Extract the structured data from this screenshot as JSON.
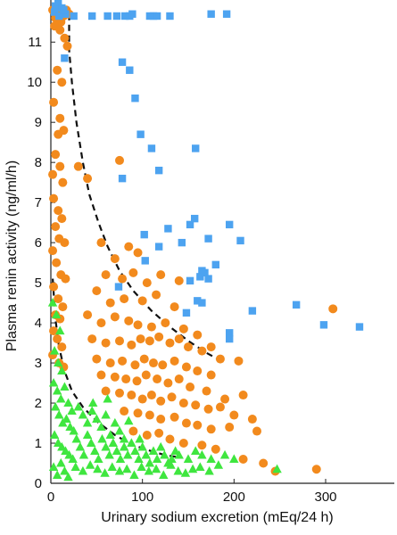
{
  "colors": {
    "high_renin": "#4da3f0",
    "normal_renin": "#f28a1d",
    "low_renin": "#3fe63f",
    "curve": "#111111",
    "axis": "#222222"
  },
  "chart_data": {
    "type": "scatter",
    "xlabel": "Urinary sodium excretion (mEq/24 h)",
    "ylabel": "Plasma renin activity (ng/ml/h)",
    "xlim": [
      0,
      375
    ],
    "ylim": [
      0,
      12.05
    ],
    "x_ticks": [
      0,
      100,
      200,
      300
    ],
    "y_ticks": [
      0,
      1,
      2,
      3,
      4,
      5,
      6,
      7,
      8,
      9,
      10,
      11
    ],
    "grid": false,
    "legend": "none",
    "series": [
      {
        "marker": "square",
        "color": "#4da3f0",
        "points": [
          [
            5,
            11.9
          ],
          [
            8,
            12
          ],
          [
            12,
            11.85
          ],
          [
            16,
            11.7
          ],
          [
            4,
            11.75
          ],
          [
            9,
            11.65
          ],
          [
            14,
            11.8
          ],
          [
            25,
            11.65
          ],
          [
            45,
            11.65
          ],
          [
            62,
            11.65
          ],
          [
            72,
            11.65
          ],
          [
            81,
            11.65
          ],
          [
            86,
            11.65
          ],
          [
            89,
            11.7
          ],
          [
            108,
            11.65
          ],
          [
            112,
            11.65
          ],
          [
            116,
            11.65
          ],
          [
            130,
            11.65
          ],
          [
            175,
            11.7
          ],
          [
            192,
            11.7
          ],
          [
            15,
            10.6
          ],
          [
            78,
            10.5
          ],
          [
            86,
            10.3
          ],
          [
            92,
            9.6
          ],
          [
            98,
            8.7
          ],
          [
            110,
            8.35
          ],
          [
            78,
            7.6
          ],
          [
            118,
            7.8
          ],
          [
            158,
            8.35
          ],
          [
            102,
            6.2
          ],
          [
            118,
            5.9
          ],
          [
            103,
            5.55
          ],
          [
            128,
            6.35
          ],
          [
            152,
            6.45
          ],
          [
            157,
            6.6
          ],
          [
            172,
            6.1
          ],
          [
            180,
            5.45
          ],
          [
            143,
            6.0
          ],
          [
            195,
            6.45
          ],
          [
            207,
            6.05
          ],
          [
            165,
            5.3
          ],
          [
            152,
            5.05
          ],
          [
            163,
            5.15
          ],
          [
            168,
            5.25
          ],
          [
            172,
            5.1
          ],
          [
            160,
            4.55
          ],
          [
            165,
            4.5
          ],
          [
            148,
            4.25
          ],
          [
            220,
            4.3
          ],
          [
            195,
            3.75
          ],
          [
            195,
            3.6
          ],
          [
            268,
            4.45
          ],
          [
            298,
            3.95
          ],
          [
            337,
            3.9
          ],
          [
            74,
            4.9
          ]
        ]
      },
      {
        "marker": "circle",
        "color": "#f28a1d",
        "points": [
          [
            2,
            11.8
          ],
          [
            5,
            11.6
          ],
          [
            8,
            11.75
          ],
          [
            11,
            11.5
          ],
          [
            14,
            11.65
          ],
          [
            17,
            11.8
          ],
          [
            20,
            11.7
          ],
          [
            4,
            11.4
          ],
          [
            10,
            11.3
          ],
          [
            15,
            11.1
          ],
          [
            18,
            10.9
          ],
          [
            7,
            10.3
          ],
          [
            12,
            10
          ],
          [
            3,
            9.5
          ],
          [
            10,
            9.1
          ],
          [
            14,
            8.8
          ],
          [
            8,
            8.7
          ],
          [
            5,
            8.2
          ],
          [
            10,
            7.9
          ],
          [
            13,
            7.5
          ],
          [
            2,
            7.7
          ],
          [
            30,
            7.9
          ],
          [
            75,
            8.05
          ],
          [
            40,
            7.6
          ],
          [
            3,
            7.1
          ],
          [
            8,
            6.8
          ],
          [
            12,
            6.6
          ],
          [
            5,
            6.4
          ],
          [
            9,
            6.1
          ],
          [
            15,
            6
          ],
          [
            2,
            5.8
          ],
          [
            6,
            5.5
          ],
          [
            11,
            5.2
          ],
          [
            16,
            5.1
          ],
          [
            3,
            4.9
          ],
          [
            8,
            4.6
          ],
          [
            13,
            4.4
          ],
          [
            5,
            4.2
          ],
          [
            10,
            4.1
          ],
          [
            3,
            3.8
          ],
          [
            7,
            3.6
          ],
          [
            12,
            3.4
          ],
          [
            2,
            3.2
          ],
          [
            9,
            3.0
          ],
          [
            14,
            2.9
          ],
          [
            55,
            6.0
          ],
          [
            70,
            5.6
          ],
          [
            85,
            5.9
          ],
          [
            95,
            5.75
          ],
          [
            60,
            5.2
          ],
          [
            78,
            5.1
          ],
          [
            90,
            5.25
          ],
          [
            105,
            5.0
          ],
          [
            120,
            5.2
          ],
          [
            140,
            5.05
          ],
          [
            50,
            4.8
          ],
          [
            65,
            4.5
          ],
          [
            80,
            4.6
          ],
          [
            100,
            4.55
          ],
          [
            115,
            4.7
          ],
          [
            135,
            4.4
          ],
          [
            40,
            4.2
          ],
          [
            55,
            4.0
          ],
          [
            70,
            4.15
          ],
          [
            85,
            4.05
          ],
          [
            95,
            3.95
          ],
          [
            110,
            3.9
          ],
          [
            125,
            4.0
          ],
          [
            145,
            3.85
          ],
          [
            160,
            3.7
          ],
          [
            175,
            3.4
          ],
          [
            45,
            3.6
          ],
          [
            60,
            3.5
          ],
          [
            75,
            3.55
          ],
          [
            88,
            3.45
          ],
          [
            98,
            3.6
          ],
          [
            108,
            3.55
          ],
          [
            118,
            3.65
          ],
          [
            130,
            3.5
          ],
          [
            140,
            3.6
          ],
          [
            150,
            3.4
          ],
          [
            165,
            3.3
          ],
          [
            185,
            3.1
          ],
          [
            205,
            3.05
          ],
          [
            50,
            3.1
          ],
          [
            65,
            3.0
          ],
          [
            78,
            3.05
          ],
          [
            92,
            2.95
          ],
          [
            102,
            3.1
          ],
          [
            112,
            3.0
          ],
          [
            122,
            2.95
          ],
          [
            135,
            3.05
          ],
          [
            148,
            2.9
          ],
          [
            160,
            2.8
          ],
          [
            175,
            2.7
          ],
          [
            55,
            2.7
          ],
          [
            70,
            2.65
          ],
          [
            82,
            2.6
          ],
          [
            94,
            2.55
          ],
          [
            104,
            2.7
          ],
          [
            116,
            2.6
          ],
          [
            128,
            2.5
          ],
          [
            140,
            2.6
          ],
          [
            152,
            2.4
          ],
          [
            170,
            2.3
          ],
          [
            190,
            2.1
          ],
          [
            210,
            2.2
          ],
          [
            60,
            2.3
          ],
          [
            75,
            2.25
          ],
          [
            88,
            2.2
          ],
          [
            100,
            2.1
          ],
          [
            110,
            2.2
          ],
          [
            120,
            2.05
          ],
          [
            132,
            2.15
          ],
          [
            145,
            2.0
          ],
          [
            158,
            1.95
          ],
          [
            172,
            1.85
          ],
          [
            185,
            1.9
          ],
          [
            200,
            1.7
          ],
          [
            220,
            1.6
          ],
          [
            80,
            1.8
          ],
          [
            95,
            1.75
          ],
          [
            108,
            1.7
          ],
          [
            120,
            1.6
          ],
          [
            135,
            1.65
          ],
          [
            148,
            1.5
          ],
          [
            160,
            1.45
          ],
          [
            175,
            1.35
          ],
          [
            195,
            1.4
          ],
          [
            225,
            1.3
          ],
          [
            90,
            1.3
          ],
          [
            105,
            1.2
          ],
          [
            118,
            1.25
          ],
          [
            130,
            1.1
          ],
          [
            145,
            1.0
          ],
          [
            165,
            0.95
          ],
          [
            180,
            0.85
          ],
          [
            210,
            0.6
          ],
          [
            232,
            0.5
          ],
          [
            245,
            0.3
          ],
          [
            290,
            0.35
          ],
          [
            308,
            4.35
          ]
        ]
      },
      {
        "marker": "triangle",
        "color": "#3fe63f",
        "points": [
          [
            2,
            4.5
          ],
          [
            6,
            4.2
          ],
          [
            10,
            3.8
          ],
          [
            4,
            3.3
          ],
          [
            8,
            3.0
          ],
          [
            12,
            2.8
          ],
          [
            3,
            2.5
          ],
          [
            7,
            2.3
          ],
          [
            11,
            2.1
          ],
          [
            15,
            2.4
          ],
          [
            19,
            2.0
          ],
          [
            23,
            1.8
          ],
          [
            5,
            1.9
          ],
          [
            9,
            1.7
          ],
          [
            13,
            1.5
          ],
          [
            17,
            1.6
          ],
          [
            21,
            1.4
          ],
          [
            25,
            1.3
          ],
          [
            30,
            1.9
          ],
          [
            35,
            1.7
          ],
          [
            40,
            1.5
          ],
          [
            45,
            1.8
          ],
          [
            50,
            1.6
          ],
          [
            55,
            1.4
          ],
          [
            60,
            1.7
          ],
          [
            65,
            1.2
          ],
          [
            70,
            1.5
          ],
          [
            75,
            1.3
          ],
          [
            80,
            1.1
          ],
          [
            4,
            1.2
          ],
          [
            8,
            1.0
          ],
          [
            12,
            0.9
          ],
          [
            16,
            0.8
          ],
          [
            20,
            0.7
          ],
          [
            24,
            0.6
          ],
          [
            28,
            1.1
          ],
          [
            32,
            0.9
          ],
          [
            36,
            0.7
          ],
          [
            40,
            1.2
          ],
          [
            44,
            1.0
          ],
          [
            48,
            0.8
          ],
          [
            52,
            0.6
          ],
          [
            56,
            1.1
          ],
          [
            60,
            0.9
          ],
          [
            64,
            0.7
          ],
          [
            68,
            1.0
          ],
          [
            72,
            0.8
          ],
          [
            76,
            0.6
          ],
          [
            80,
            0.9
          ],
          [
            84,
            0.7
          ],
          [
            88,
            1.0
          ],
          [
            92,
            0.8
          ],
          [
            96,
            0.6
          ],
          [
            100,
            0.9
          ],
          [
            104,
            0.7
          ],
          [
            108,
            0.5
          ],
          [
            112,
            0.8
          ],
          [
            116,
            0.6
          ],
          [
            120,
            0.9
          ],
          [
            124,
            0.7
          ],
          [
            128,
            0.5
          ],
          [
            132,
            0.6
          ],
          [
            136,
            0.8
          ],
          [
            140,
            0.7
          ],
          [
            150,
            0.6
          ],
          [
            158,
            0.8
          ],
          [
            165,
            0.7
          ],
          [
            175,
            0.6
          ],
          [
            190,
            0.7
          ],
          [
            200,
            0.6
          ],
          [
            3,
            0.4
          ],
          [
            7,
            0.2
          ],
          [
            11,
            0.5
          ],
          [
            15,
            0.3
          ],
          [
            19,
            0.15
          ],
          [
            27,
            0.4
          ],
          [
            35,
            0.3
          ],
          [
            43,
            0.45
          ],
          [
            51,
            0.35
          ],
          [
            59,
            0.25
          ],
          [
            67,
            0.4
          ],
          [
            75,
            0.3
          ],
          [
            83,
            0.35
          ],
          [
            91,
            0.2
          ],
          [
            99,
            0.4
          ],
          [
            107,
            0.3
          ],
          [
            115,
            0.35
          ],
          [
            123,
            0.2
          ],
          [
            131,
            0.45
          ],
          [
            139,
            0.3
          ],
          [
            147,
            0.25
          ],
          [
            155,
            0.35
          ],
          [
            163,
            0.4
          ],
          [
            173,
            0.3
          ],
          [
            183,
            0.45
          ],
          [
            247,
            0.35
          ],
          [
            46,
            2.0
          ],
          [
            62,
            2.1
          ],
          [
            85,
            1.55
          ],
          [
            97,
            1.1
          ]
        ]
      }
    ],
    "curves": [
      {
        "style": "dashed",
        "points": [
          [
            20,
            11.7
          ],
          [
            20,
            10.8
          ],
          [
            23,
            10
          ],
          [
            28,
            9
          ],
          [
            35,
            8
          ],
          [
            42,
            7.2
          ],
          [
            52,
            6.5
          ],
          [
            62,
            5.9
          ],
          [
            75,
            5.3
          ],
          [
            90,
            4.8
          ],
          [
            110,
            4.3
          ],
          [
            130,
            3.9
          ],
          [
            150,
            3.55
          ],
          [
            170,
            3.25
          ],
          [
            190,
            3.0
          ]
        ]
      },
      {
        "style": "dashed",
        "points": [
          [
            2,
            5.1
          ],
          [
            5,
            4.1
          ],
          [
            9,
            3.4
          ],
          [
            15,
            2.8
          ],
          [
            23,
            2.3
          ],
          [
            35,
            1.9
          ],
          [
            50,
            1.55
          ],
          [
            70,
            1.2
          ],
          [
            90,
            0.95
          ],
          [
            110,
            0.8
          ],
          [
            125,
            0.7
          ],
          [
            140,
            0.65
          ]
        ]
      }
    ]
  }
}
